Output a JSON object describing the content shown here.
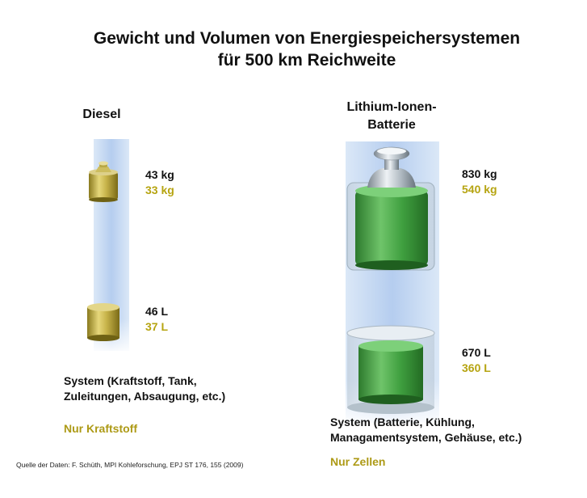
{
  "title": {
    "line1": "Gewicht und Volumen von Energiespeichersystemen",
    "line2": "für 500 km Reichweite"
  },
  "diesel": {
    "heading": "Diesel",
    "weight_total": "43 kg",
    "weight_fuel": "33 kg",
    "volume_total": "46 L",
    "volume_fuel": "37 L",
    "system_desc_line1": "System (Kraftstoff, Tank,",
    "system_desc_line2": "Zuleitungen, Absaugung, etc.)",
    "part_desc": "Nur Kraftstoff"
  },
  "battery": {
    "heading_line1": "Lithium-Ionen-",
    "heading_line2": "Batterie",
    "weight_total": "830 kg",
    "weight_cells": "540 kg",
    "volume_total": "670 L",
    "volume_cells": "360 L",
    "system_desc_line1": "System (Batterie, Kühlung,",
    "system_desc_line2": "Managamentsystem, Gehäuse, etc.)",
    "part_desc": "Nur Zellen"
  },
  "source": "Quelle der Daten: F. Schüth, MPI Kohleforschung, EPJ ST 176, 155 (2009)",
  "colors": {
    "diesel_gold": "#b6a411",
    "battery_green": "#3c9a3c",
    "panel_blue": "#c9def5"
  }
}
